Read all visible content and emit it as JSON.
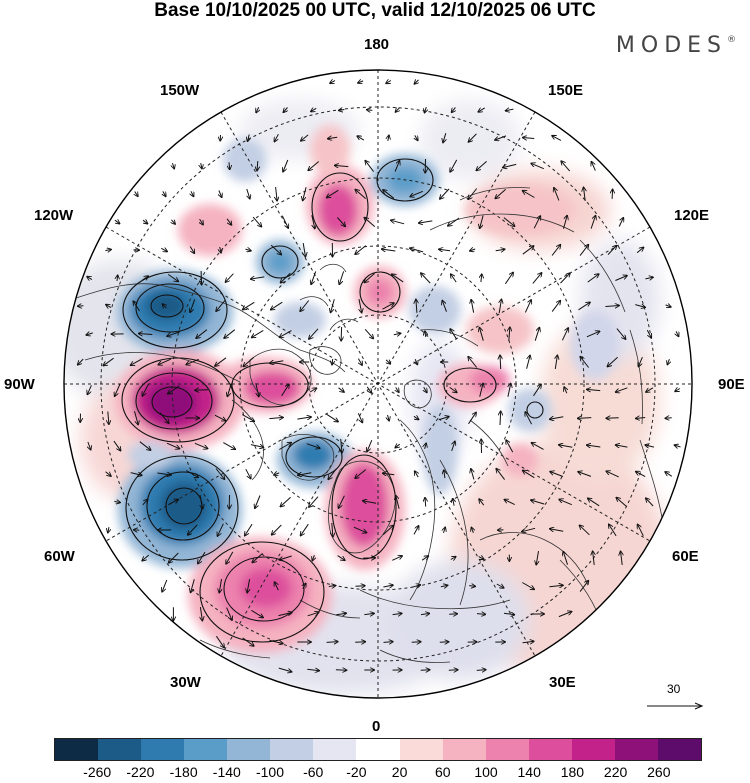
{
  "header": {
    "title": "Base 10/10/2025 00 UTC, valid 12/10/2025 06 UTC",
    "brand": "MODES",
    "brand_mark": "®"
  },
  "map": {
    "projection": "north-polar-stereographic",
    "longitude_labels": {
      "top": "180",
      "bottom": "0",
      "left": "90W",
      "right": "90E",
      "upper_left_1": "150W",
      "upper_left_2": "120W",
      "lower_left_1": "60W",
      "lower_left_2": "30W",
      "upper_right_1": "150E",
      "upper_right_2": "120E",
      "lower_right_1": "60E",
      "lower_right_2": "30E"
    },
    "reference_vector": {
      "label": "30"
    }
  },
  "legend": {
    "colors": [
      "#0d2b45",
      "#1c5a87",
      "#2f7bb0",
      "#5b9dc9",
      "#93b6d6",
      "#c3cfe4",
      "#e6e6f3",
      "#ffffff",
      "#fbdada",
      "#f5b2c1",
      "#ec82ad",
      "#dd4f9c",
      "#c2228a",
      "#8e117a",
      "#5e0c6b"
    ],
    "ticks": [
      "-260",
      "-220",
      "-180",
      "-140",
      "-100",
      "-60",
      "-20",
      "20",
      "60",
      "100",
      "140",
      "180",
      "220",
      "260"
    ]
  }
}
